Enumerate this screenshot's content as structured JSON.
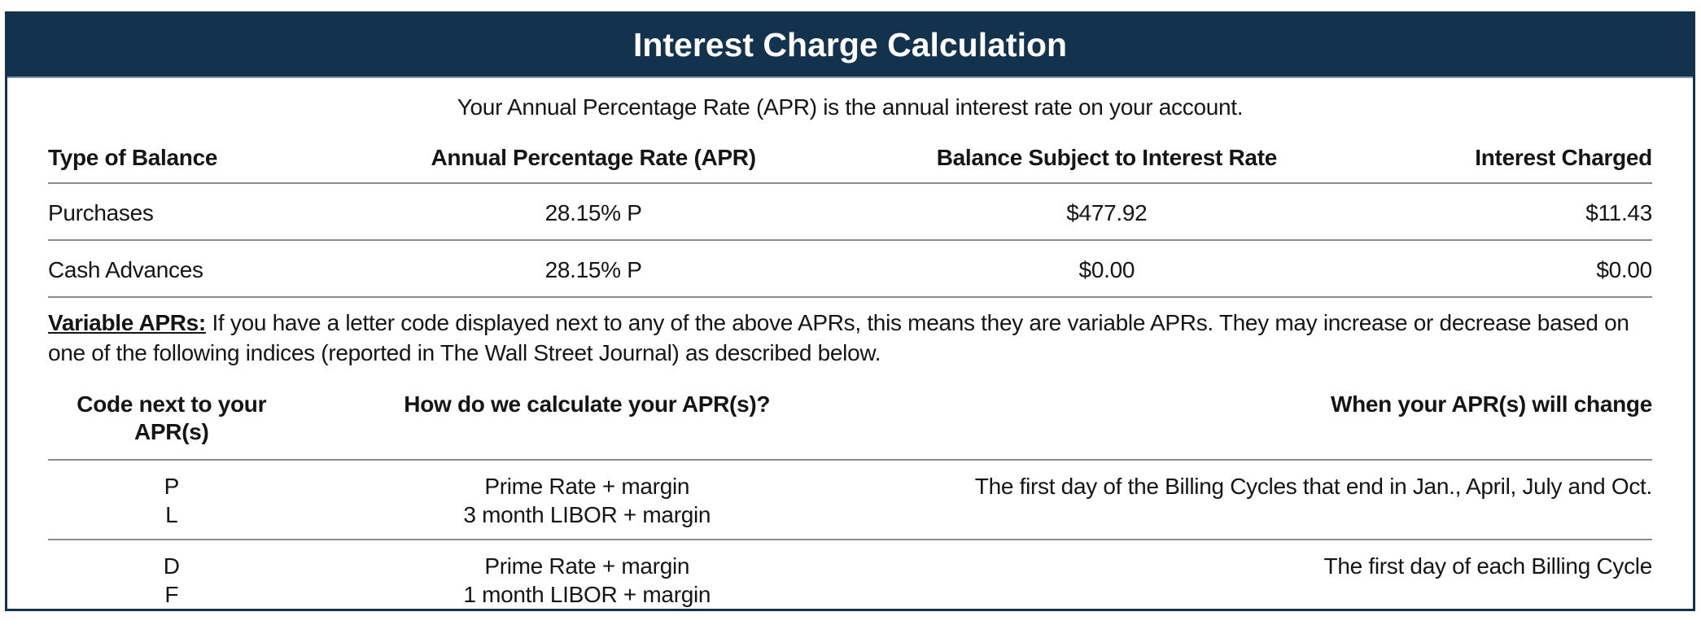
{
  "colors": {
    "header_bg": "#12324E",
    "header_text": "#FFFFFF",
    "border": "#12324E",
    "divider": "#8C8C8C"
  },
  "header": {
    "title": "Interest Charge Calculation"
  },
  "intro": "Your Annual Percentage Rate (APR) is the annual interest rate on your account.",
  "balance_table": {
    "columns": [
      "Type of Balance",
      "Annual Percentage Rate (APR)",
      "Balance Subject to Interest Rate",
      "Interest Charged"
    ],
    "rows": [
      {
        "type": "Purchases",
        "apr": "28.15% P",
        "balance": "$477.92",
        "interest": "$11.43"
      },
      {
        "type": "Cash Advances",
        "apr": "28.15% P",
        "balance": "$0.00",
        "interest": "$0.00"
      }
    ]
  },
  "variable_aprs": {
    "label": "Variable APRs:",
    "text": "If you have a letter code displayed next to any of the above APRs, this means they are variable APRs. They may increase or decrease based on one of the following indices (reported in The Wall Street Journal) as described below."
  },
  "codes_table": {
    "columns": [
      "Code next to your APR(s)",
      "How do we calculate your APR(s)?",
      "When your APR(s) will change"
    ],
    "groups": [
      {
        "codes": [
          "P",
          "L"
        ],
        "calculations": [
          "Prime Rate + margin",
          "3 month LIBOR + margin"
        ],
        "when": "The first day of the Billing Cycles that end in Jan., April, July and Oct."
      },
      {
        "codes": [
          "D",
          "F"
        ],
        "calculations": [
          "Prime Rate + margin",
          "1 month LIBOR + margin"
        ],
        "when": "The first day of each Billing Cycle"
      }
    ]
  }
}
